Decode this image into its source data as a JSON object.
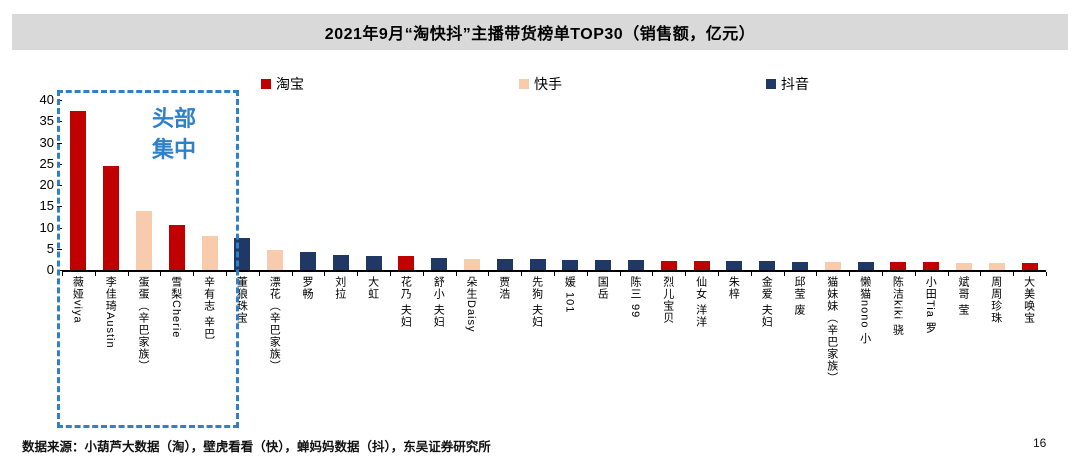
{
  "title": "2021年9月“淘快抖”主播带货榜单TOP30（销售额，亿元）",
  "annotation": {
    "line1": "头部",
    "line2": "集中"
  },
  "footer": {
    "source": "数据来源：小葫芦大数据（淘），壁虎看看（快），蝉妈妈数据（抖），东吴证券研究所",
    "page": "16"
  },
  "colors": {
    "taobao": "#c00000",
    "kuaishou": "#f8cbad",
    "douyin": "#1f3864",
    "callout": "#2e80c8",
    "title_bg": "#d9d9d9"
  },
  "chart_data": {
    "type": "bar",
    "title": "2021年9月“淘快抖”主播带货榜单TOP30（销售额，亿元）",
    "xlabel": "",
    "ylabel": "销售额（亿元）",
    "ylim": [
      0,
      40
    ],
    "y_ticks": [
      0,
      5,
      10,
      15,
      20,
      25,
      30,
      35,
      40
    ],
    "grid": false,
    "legend_position": "top",
    "legend": [
      {
        "label": "淘宝",
        "platform": "taobao"
      },
      {
        "label": "快手",
        "platform": "kuaishou"
      },
      {
        "label": "抖音",
        "platform": "douyin"
      }
    ],
    "items": [
      {
        "label": "薇娅viya",
        "platform": "taobao",
        "value": 37.5
      },
      {
        "label": "李佳琦Austin",
        "platform": "taobao",
        "value": 24.5
      },
      {
        "label": "蛋蛋（辛巴家族）",
        "platform": "kuaishou",
        "value": 13.8
      },
      {
        "label": "雪梨Cherie",
        "platform": "taobao",
        "value": 10.5
      },
      {
        "label": "辛有志 辛巴",
        "platform": "kuaishou",
        "value": 8.0
      },
      {
        "label": "董狼珠宝",
        "platform": "douyin",
        "value": 7.5
      },
      {
        "label": "漂花（辛巴家族）",
        "platform": "kuaishou",
        "value": 4.7
      },
      {
        "label": "罗畅",
        "platform": "douyin",
        "value": 4.2
      },
      {
        "label": "刘拉",
        "platform": "douyin",
        "value": 3.5
      },
      {
        "label": "大虹",
        "platform": "douyin",
        "value": 3.3
      },
      {
        "label": "花乃 夫妇",
        "platform": "taobao",
        "value": 3.2
      },
      {
        "label": "舒小 夫妇",
        "platform": "douyin",
        "value": 2.8
      },
      {
        "label": "朵生Daisy",
        "platform": "kuaishou",
        "value": 2.6
      },
      {
        "label": "贾浩",
        "platform": "douyin",
        "value": 2.5
      },
      {
        "label": "先狗 夫妇",
        "platform": "douyin",
        "value": 2.5
      },
      {
        "label": "媛 101",
        "platform": "douyin",
        "value": 2.4
      },
      {
        "label": "国岳",
        "platform": "douyin",
        "value": 2.4
      },
      {
        "label": "陈三 99",
        "platform": "douyin",
        "value": 2.3
      },
      {
        "label": "烈儿宝贝",
        "platform": "taobao",
        "value": 2.2
      },
      {
        "label": "仙女 洋洋",
        "platform": "taobao",
        "value": 2.2
      },
      {
        "label": "朱梓",
        "platform": "douyin",
        "value": 2.1
      },
      {
        "label": "金爱 夫妇",
        "platform": "douyin",
        "value": 2.1
      },
      {
        "label": "邱莹 废",
        "platform": "douyin",
        "value": 2.0
      },
      {
        "label": "猫妹妹（辛巴家族）",
        "platform": "kuaishou",
        "value": 2.0
      },
      {
        "label": "懒猫nono 小",
        "platform": "douyin",
        "value": 1.9
      },
      {
        "label": "陈洁kiki 骁",
        "platform": "taobao",
        "value": 1.9
      },
      {
        "label": "小田Tia 罗",
        "platform": "taobao",
        "value": 1.8
      },
      {
        "label": "斌哥 莹",
        "platform": "kuaishou",
        "value": 1.7
      },
      {
        "label": "周周珍珠",
        "platform": "kuaishou",
        "value": 1.7
      },
      {
        "label": "大美唤宝",
        "platform": "taobao",
        "value": 1.6
      }
    ]
  }
}
